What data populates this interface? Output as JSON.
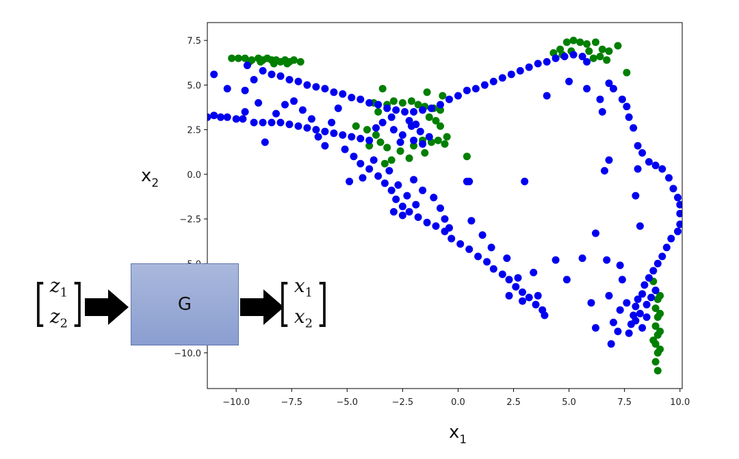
{
  "chart_data": {
    "type": "scatter",
    "xlabel": "x",
    "xlabel_sub": "1",
    "ylabel": "x",
    "ylabel_sub": "2",
    "xlim": [
      -11.3,
      10.1
    ],
    "ylim": [
      -12,
      8.5
    ],
    "x_ticks": [
      {
        "value": -10.0,
        "label": "−10.0"
      },
      {
        "value": -7.5,
        "label": "−7.5"
      },
      {
        "value": -5.0,
        "label": "−5.0"
      },
      {
        "value": -2.5,
        "label": "−2.5"
      },
      {
        "value": 0.0,
        "label": "0.0"
      },
      {
        "value": 2.5,
        "label": "2.5"
      },
      {
        "value": 5.0,
        "label": "5.0"
      },
      {
        "value": 7.5,
        "label": "7.5"
      },
      {
        "value": 10.0,
        "label": "10.0"
      }
    ],
    "y_ticks": [
      {
        "value": 7.5,
        "label": "7.5"
      },
      {
        "value": 5.0,
        "label": "5.0"
      },
      {
        "value": 2.5,
        "label": "2.5"
      },
      {
        "value": 0.0,
        "label": "0.0"
      },
      {
        "value": -2.5,
        "label": "−2.5"
      },
      {
        "value": -5.0,
        "label": "−5.0"
      },
      {
        "value": -7.5,
        "label": "−7.5"
      },
      {
        "value": -10.0,
        "label": "−10.0"
      }
    ],
    "grid": false,
    "series": [
      {
        "color": "#007f00",
        "points": [
          [
            -10.2,
            6.5
          ],
          [
            -9.9,
            6.5
          ],
          [
            -9.6,
            6.5
          ],
          [
            -9.3,
            6.4
          ],
          [
            -9.0,
            6.5
          ],
          [
            -8.8,
            6.4
          ],
          [
            -8.6,
            6.5
          ],
          [
            -8.4,
            6.4
          ],
          [
            -8.2,
            6.4
          ],
          [
            -8.0,
            6.3
          ],
          [
            -7.8,
            6.4
          ],
          [
            -7.6,
            6.3
          ],
          [
            -7.4,
            6.4
          ],
          [
            -7.7,
            6.2
          ],
          [
            -8.3,
            6.2
          ],
          [
            -8.9,
            6.3
          ],
          [
            -9.4,
            6.3
          ],
          [
            -7.1,
            6.3
          ],
          [
            -3.4,
            4.8
          ],
          [
            -1.4,
            4.6
          ],
          [
            -0.7,
            4.4
          ],
          [
            -3.8,
            4.0
          ],
          [
            -3.2,
            3.9
          ],
          [
            -2.9,
            4.1
          ],
          [
            -2.5,
            4.0
          ],
          [
            -2.1,
            4.1
          ],
          [
            -1.8,
            3.9
          ],
          [
            -1.5,
            3.8
          ],
          [
            -1.1,
            3.7
          ],
          [
            -0.8,
            3.6
          ],
          [
            -3.6,
            3.5
          ],
          [
            -1.3,
            3.2
          ],
          [
            -1.0,
            3.0
          ],
          [
            -0.8,
            2.7
          ],
          [
            -4.6,
            2.7
          ],
          [
            -4.1,
            2.5
          ],
          [
            -3.7,
            2.2
          ],
          [
            -3.5,
            1.8
          ],
          [
            -4.0,
            1.6
          ],
          [
            -3.2,
            1.5
          ],
          [
            -2.6,
            1.3
          ],
          [
            -2.0,
            1.6
          ],
          [
            -1.6,
            1.9
          ],
          [
            -1.2,
            1.8
          ],
          [
            -0.9,
            1.9
          ],
          [
            -0.6,
            1.7
          ],
          [
            -0.5,
            2.1
          ],
          [
            -3.0,
            0.8
          ],
          [
            -2.2,
            0.9
          ],
          [
            -1.5,
            1.2
          ],
          [
            0.4,
            1.0
          ],
          [
            -3.3,
            0.6
          ],
          [
            4.3,
            6.8
          ],
          [
            4.6,
            7.0
          ],
          [
            4.9,
            7.4
          ],
          [
            5.2,
            7.5
          ],
          [
            5.5,
            7.4
          ],
          [
            5.8,
            7.3
          ],
          [
            6.2,
            7.4
          ],
          [
            6.5,
            7.0
          ],
          [
            6.8,
            6.9
          ],
          [
            7.2,
            7.2
          ],
          [
            6.1,
            6.5
          ],
          [
            6.4,
            6.6
          ],
          [
            6.7,
            6.4
          ],
          [
            5.1,
            6.9
          ],
          [
            4.7,
            6.7
          ],
          [
            5.9,
            6.9
          ],
          [
            7.6,
            5.7
          ],
          [
            8.8,
            -6.0
          ],
          [
            8.9,
            -6.5
          ],
          [
            9.0,
            -7.0
          ],
          [
            8.9,
            -7.5
          ],
          [
            9.0,
            -8.0
          ],
          [
            8.9,
            -8.5
          ],
          [
            9.0,
            -9.0
          ],
          [
            8.9,
            -9.5
          ],
          [
            9.0,
            -10.0
          ],
          [
            8.9,
            -10.5
          ],
          [
            9.0,
            -11.0
          ],
          [
            9.1,
            -6.8
          ],
          [
            9.1,
            -7.8
          ],
          [
            9.1,
            -8.8
          ],
          [
            9.1,
            -9.8
          ],
          [
            8.8,
            -9.3
          ]
        ]
      },
      {
        "color": "#0000f0",
        "points": [
          [
            -11.3,
            3.2
          ],
          [
            -11.0,
            3.3
          ],
          [
            -10.7,
            3.2
          ],
          [
            -10.4,
            3.2
          ],
          [
            -10.0,
            3.1
          ],
          [
            -9.7,
            3.1
          ],
          [
            -11.0,
            5.6
          ],
          [
            -10.4,
            4.8
          ],
          [
            -9.6,
            4.7
          ],
          [
            -9.5,
            6.1
          ],
          [
            -9.2,
            5.3
          ],
          [
            -9.0,
            4.0
          ],
          [
            -9.6,
            3.5
          ],
          [
            -9.2,
            2.9
          ],
          [
            -8.8,
            2.9
          ],
          [
            -8.4,
            2.9
          ],
          [
            -8.0,
            2.9
          ],
          [
            -7.6,
            2.8
          ],
          [
            -7.2,
            2.7
          ],
          [
            -6.8,
            2.6
          ],
          [
            -6.4,
            2.5
          ],
          [
            -6.0,
            2.4
          ],
          [
            -5.6,
            2.3
          ],
          [
            -5.2,
            2.2
          ],
          [
            -4.8,
            2.1
          ],
          [
            -4.4,
            2.0
          ],
          [
            -4.0,
            1.9
          ],
          [
            -8.8,
            5.8
          ],
          [
            -8.4,
            5.6
          ],
          [
            -8.0,
            5.5
          ],
          [
            -7.6,
            5.3
          ],
          [
            -7.2,
            5.2
          ],
          [
            -6.8,
            5.0
          ],
          [
            -6.4,
            4.9
          ],
          [
            -6.0,
            4.8
          ],
          [
            -5.6,
            4.6
          ],
          [
            -5.2,
            4.5
          ],
          [
            -4.8,
            4.3
          ],
          [
            -4.4,
            4.2
          ],
          [
            -4.0,
            4.0
          ],
          [
            -3.6,
            3.9
          ],
          [
            -3.2,
            3.7
          ],
          [
            -2.8,
            3.6
          ],
          [
            -2.4,
            3.5
          ],
          [
            -2.0,
            3.5
          ],
          [
            -1.6,
            3.6
          ],
          [
            -1.2,
            3.7
          ],
          [
            -0.8,
            3.9
          ],
          [
            -0.4,
            4.2
          ],
          [
            0.0,
            4.4
          ],
          [
            0.4,
            4.7
          ],
          [
            0.8,
            4.8
          ],
          [
            1.2,
            5.0
          ],
          [
            1.6,
            5.2
          ],
          [
            2.0,
            5.4
          ],
          [
            2.4,
            5.6
          ],
          [
            2.8,
            5.8
          ],
          [
            3.2,
            6.0
          ],
          [
            3.6,
            6.2
          ],
          [
            4.0,
            6.3
          ],
          [
            4.4,
            6.5
          ],
          [
            4.8,
            6.6
          ],
          [
            5.2,
            6.7
          ],
          [
            5.6,
            6.6
          ],
          [
            5.8,
            6.3
          ],
          [
            -8.7,
            1.8
          ],
          [
            -8.2,
            3.4
          ],
          [
            -7.8,
            3.9
          ],
          [
            -7.4,
            4.1
          ],
          [
            -7.0,
            3.6
          ],
          [
            -6.6,
            3.1
          ],
          [
            -6.3,
            2.1
          ],
          [
            -6.0,
            1.6
          ],
          [
            -5.7,
            2.9
          ],
          [
            -5.4,
            3.7
          ],
          [
            -5.1,
            1.4
          ],
          [
            -4.7,
            1.0
          ],
          [
            -4.4,
            0.6
          ],
          [
            -4.0,
            0.3
          ],
          [
            -3.6,
            -0.1
          ],
          [
            -3.3,
            -0.5
          ],
          [
            -3.0,
            -0.9
          ],
          [
            -2.8,
            -1.4
          ],
          [
            -2.5,
            -1.8
          ],
          [
            -2.2,
            -2.1
          ],
          [
            -1.8,
            -2.4
          ],
          [
            -1.4,
            -2.7
          ],
          [
            -1.0,
            -2.9
          ],
          [
            -0.6,
            -3.2
          ],
          [
            -0.3,
            -3.6
          ],
          [
            0.1,
            -3.9
          ],
          [
            0.5,
            -4.2
          ],
          [
            0.9,
            -4.6
          ],
          [
            1.3,
            -4.9
          ],
          [
            1.6,
            -5.3
          ],
          [
            2.0,
            -5.6
          ],
          [
            2.3,
            -5.9
          ],
          [
            2.6,
            -6.3
          ],
          [
            2.9,
            -6.6
          ],
          [
            3.2,
            -6.9
          ],
          [
            3.5,
            -7.3
          ],
          [
            3.8,
            -7.6
          ],
          [
            -4.9,
            -0.4
          ],
          [
            -4.3,
            -0.2
          ],
          [
            -3.8,
            0.8
          ],
          [
            -3.1,
            0.2
          ],
          [
            -2.7,
            -0.6
          ],
          [
            -2.3,
            -1.2
          ],
          [
            -2.0,
            -0.3
          ],
          [
            -1.6,
            -0.9
          ],
          [
            -1.1,
            -1.3
          ],
          [
            -0.8,
            -1.9
          ],
          [
            -0.6,
            -2.5
          ],
          [
            -0.4,
            -3.0
          ],
          [
            -2.9,
            -2.1
          ],
          [
            -2.5,
            -2.3
          ],
          [
            -1.9,
            -1.7
          ],
          [
            0.6,
            -2.6
          ],
          [
            1.1,
            -3.4
          ],
          [
            1.5,
            -4.1
          ],
          [
            2.2,
            -4.7
          ],
          [
            2.7,
            -5.8
          ],
          [
            3.4,
            -5.5
          ],
          [
            3.6,
            -6.8
          ],
          [
            3.9,
            -7.9
          ],
          [
            2.3,
            -6.8
          ],
          [
            2.9,
            -7.1
          ],
          [
            -2.9,
            2.5
          ],
          [
            -2.5,
            2.2
          ],
          [
            -2.1,
            2.7
          ],
          [
            -1.7,
            2.4
          ],
          [
            -1.3,
            2.1
          ],
          [
            -3.4,
            2.9
          ],
          [
            -3.0,
            3.2
          ],
          [
            -2.2,
            3.0
          ],
          [
            -1.9,
            2.8
          ],
          [
            -3.7,
            2.6
          ],
          [
            -2.6,
            1.8
          ],
          [
            -2.0,
            1.9
          ],
          [
            -1.6,
            1.7
          ],
          [
            5.0,
            5.2
          ],
          [
            4.0,
            4.4
          ],
          [
            5.8,
            4.8
          ],
          [
            6.4,
            4.2
          ],
          [
            6.8,
            5.1
          ],
          [
            6.5,
            3.5
          ],
          [
            7.0,
            4.8
          ],
          [
            7.4,
            4.2
          ],
          [
            7.6,
            3.8
          ],
          [
            7.7,
            3.2
          ],
          [
            7.9,
            2.6
          ],
          [
            8.1,
            1.6
          ],
          [
            8.3,
            1.2
          ],
          [
            8.6,
            0.7
          ],
          [
            8.9,
            0.5
          ],
          [
            9.2,
            0.3
          ],
          [
            9.5,
            -0.2
          ],
          [
            9.7,
            -0.8
          ],
          [
            9.9,
            -1.3
          ],
          [
            10.0,
            -1.7
          ],
          [
            10.0,
            -2.2
          ],
          [
            10.0,
            -2.8
          ],
          [
            9.9,
            -3.2
          ],
          [
            9.6,
            -3.6
          ],
          [
            9.4,
            -4.1
          ],
          [
            9.2,
            -4.6
          ],
          [
            9.0,
            -5.0
          ],
          [
            8.8,
            -5.4
          ],
          [
            8.6,
            -5.8
          ],
          [
            8.4,
            -6.2
          ],
          [
            8.3,
            -6.7
          ],
          [
            8.1,
            -7.0
          ],
          [
            8.0,
            -7.4
          ],
          [
            7.9,
            -7.9
          ],
          [
            7.8,
            -8.4
          ],
          [
            7.7,
            -8.9
          ],
          [
            8.0,
            -8.2
          ],
          [
            8.2,
            -7.8
          ],
          [
            8.5,
            -7.3
          ],
          [
            8.7,
            -6.9
          ],
          [
            8.9,
            -6.5
          ],
          [
            8.5,
            -8.0
          ],
          [
            8.3,
            -8.6
          ],
          [
            7.6,
            -7.2
          ],
          [
            7.3,
            -7.6
          ],
          [
            6.8,
            -6.8
          ],
          [
            7.2,
            -8.8
          ],
          [
            6.9,
            -9.5
          ],
          [
            6.2,
            -8.6
          ],
          [
            6.0,
            -7.2
          ],
          [
            7.0,
            -8.3
          ],
          [
            8.1,
            0.3
          ],
          [
            8.2,
            -2.9
          ],
          [
            8.0,
            -1.2
          ],
          [
            6.8,
            0.8
          ],
          [
            6.6,
            0.2
          ],
          [
            6.2,
            -3.3
          ],
          [
            5.6,
            -4.7
          ],
          [
            6.7,
            -4.8
          ],
          [
            7.3,
            -5.1
          ],
          [
            7.4,
            -5.9
          ],
          [
            4.9,
            -5.9
          ],
          [
            4.4,
            -4.8
          ],
          [
            3.0,
            -0.4
          ],
          [
            0.5,
            -0.4
          ],
          [
            0.4,
            -0.4
          ]
        ]
      }
    ]
  },
  "diagram": {
    "box_label": "G",
    "input_top": "z",
    "input_top_sub": "1",
    "input_bottom": "z",
    "input_bottom_sub": "2",
    "output_top": "x",
    "output_top_sub": "1",
    "output_bottom": "x",
    "output_bottom_sub": "2"
  }
}
